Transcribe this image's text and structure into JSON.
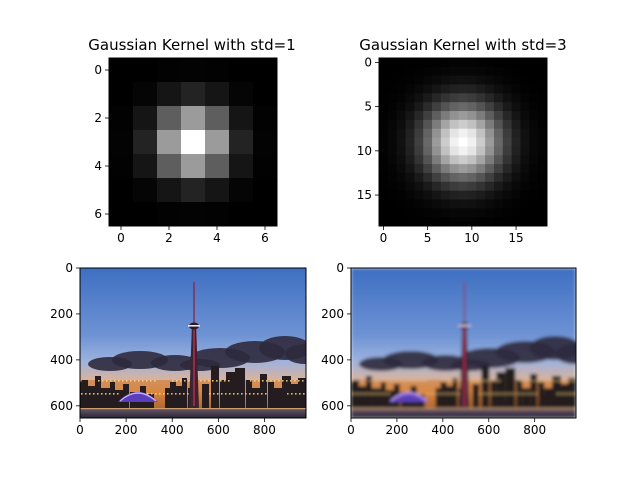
{
  "chart_data": [
    {
      "type": "heatmap",
      "title": "Gaussian Kernel with std=1",
      "size": 7,
      "std": 1,
      "colormap": "gray",
      "xticks": [
        0,
        2,
        4,
        6
      ],
      "yticks": [
        0,
        2,
        4,
        6
      ]
    },
    {
      "type": "heatmap",
      "title": "Gaussian Kernel with std=3",
      "size": 19,
      "std": 3,
      "colormap": "gray",
      "xticks": [
        0,
        5,
        10,
        15
      ],
      "yticks": [
        0,
        5,
        10,
        15
      ]
    },
    {
      "type": "image",
      "title": "",
      "width": 980,
      "height": 653,
      "blur": false,
      "xticks": [
        0,
        200,
        400,
        600,
        800
      ],
      "yticks": [
        0,
        200,
        400,
        600
      ],
      "image_content": "Toronto skyline at dusk: blue sky, dark clouds, CN Tower, Rogers Centre dome lit in purple, lit towers, waterfront"
    },
    {
      "type": "image",
      "title": "",
      "width": 980,
      "height": 653,
      "blur": true,
      "xticks": [
        0,
        200,
        400,
        600,
        800
      ],
      "yticks": [
        0,
        200,
        400,
        600
      ],
      "image_content": "Blurred version of the Toronto skyline image"
    }
  ]
}
